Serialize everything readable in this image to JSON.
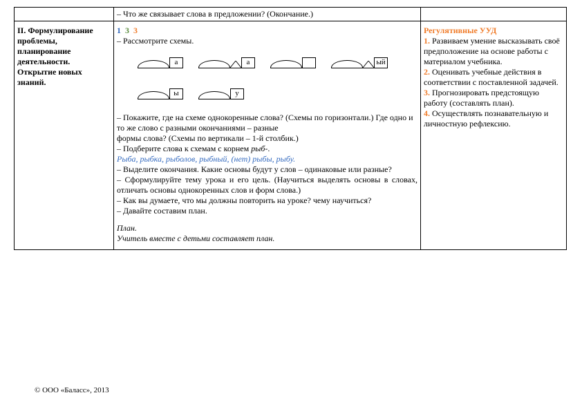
{
  "row_top": {
    "col2": "– Что же связывает слова в предложении? (Окончание.)"
  },
  "row_main": {
    "heading": "II. Формулирование проблемы, планирование деятельности. Открытие новых знаний.",
    "icons": {
      "a": "1",
      "b": "3",
      "c": "3"
    },
    "line_rassmotr": "– Рассмотрите схемы.",
    "schemes": {
      "row1": [
        {
          "root_w": 46,
          "suffix": null,
          "ending": "а"
        },
        {
          "root_w": 46,
          "suffix_w": 16,
          "ending": "а"
        },
        {
          "root_w": 46,
          "suffix": null,
          "ending": ""
        },
        {
          "root_w": 46,
          "suffix_w": 16,
          "ending": "ый"
        }
      ],
      "row2": [
        {
          "root_w": 46,
          "suffix": null,
          "ending": "ы"
        },
        {
          "root_w": 46,
          "suffix": null,
          "ending": "у"
        }
      ]
    },
    "p1": "– Покажите, где на схеме однокоренные слова? (Схемы по горизонтали.) Где одно и то же слово с разными окончаниями – разные",
    "p1b": "формы слова? (Схемы по вертикали – 1-й столбик.)",
    "p2a": "– Подберите слова к схемам с корнем ",
    "p2_root": "рыб-",
    "p2_dot": ".",
    "p3_italic": "Рыба, рыбка, рыболов, рыбный, (нет) рыбы, рыбу.",
    "p4": "– Выделите окончания. Какие основы будут у слов – одинаковые или разные?",
    "p5": "– Сформулируйте тему урока и его цель. (Научиться выделять основы в словах, отличать основы однокоренных слов и форм слова.)",
    "p6": "– Как вы думаете, что мы должны повторить на уроке? чему научиться?",
    "p7": "– Давайте составим план.",
    "p8": "План.",
    "p9": "Учитель вместе с детьми составляет план.",
    "uud": {
      "title": "Регулятивные УУД",
      "items": [
        {
          "n": "1.",
          "t": " Развиваем умение высказывать своё предположение на основе работы с материалом учебника."
        },
        {
          "n": "2.",
          "t": " Оценивать учебные действия в соответствии с поставленной задачей."
        },
        {
          "n": "3.",
          "t": " Прогнозировать предстоящую работу (составлять план)."
        },
        {
          "n": "4.",
          "t": " Осуществлять познавательную и личностную рефлексию."
        }
      ]
    }
  },
  "footer": "© ООО «Баласс», 2013"
}
